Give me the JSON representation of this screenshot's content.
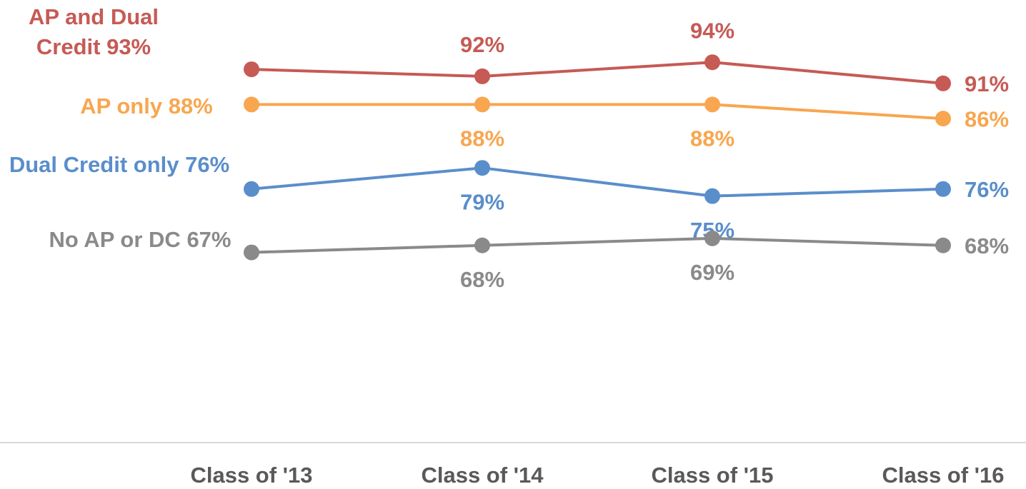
{
  "chart_data": {
    "type": "line",
    "categories": [
      "Class of '13",
      "Class of '14",
      "Class of '15",
      "Class of '16"
    ],
    "series": [
      {
        "name": "AP and Dual Credit",
        "color": "#c65a55",
        "values": [
          93,
          92,
          94,
          91
        ],
        "value_labels": [
          "93%",
          "92%",
          "94%",
          "91%"
        ]
      },
      {
        "name": "AP only",
        "color": "#f8a64f",
        "values": [
          88,
          88,
          88,
          86
        ],
        "value_labels": [
          "88%",
          "88%",
          "88%",
          "86%"
        ]
      },
      {
        "name": "Dual Credit only",
        "color": "#5a8ecb",
        "values": [
          76,
          79,
          75,
          76
        ],
        "value_labels": [
          "76%",
          "79%",
          "75%",
          "76%"
        ]
      },
      {
        "name": "No AP or DC",
        "color": "#8a8a8a",
        "values": [
          67,
          68,
          69,
          68
        ],
        "value_labels": [
          "67%",
          "68%",
          "69%",
          "68%"
        ]
      }
    ],
    "ylim": [
      40,
      100
    ]
  }
}
